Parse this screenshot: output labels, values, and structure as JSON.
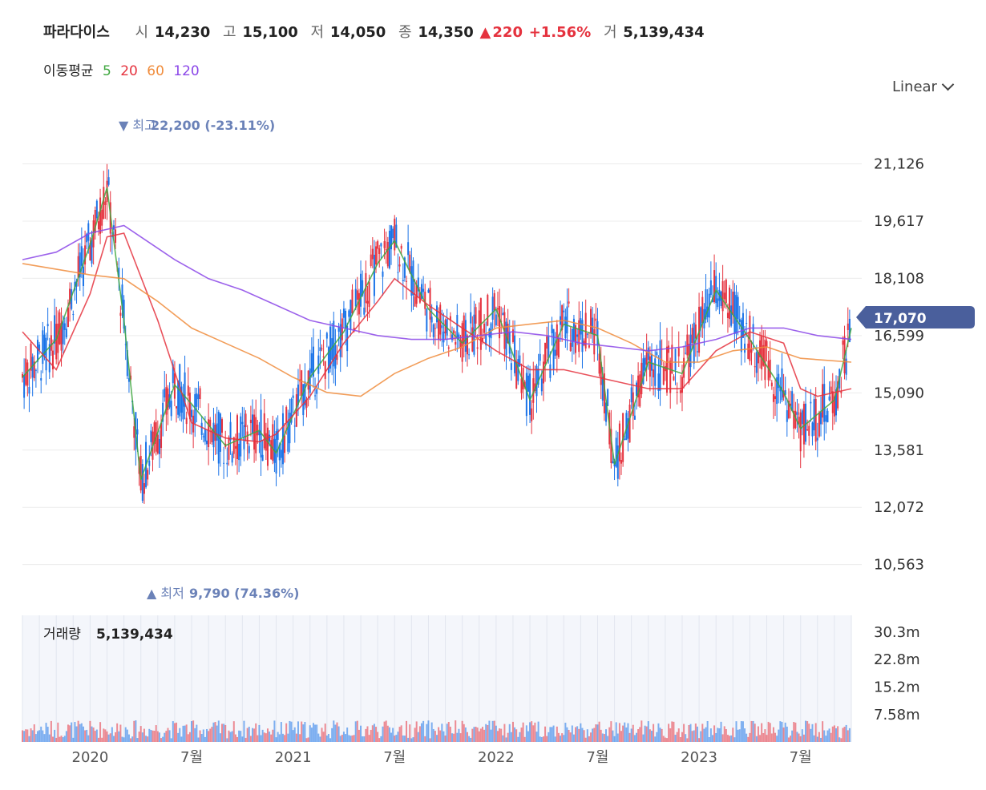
{
  "header": {
    "stock_name": "파라다이스",
    "open_label": "시",
    "open_value": "14,230",
    "high_label": "고",
    "high_value": "15,100",
    "low_label": "저",
    "low_value": "14,050",
    "close_label": "종",
    "close_value": "14,350",
    "change_icon": "triangle-up-icon",
    "change_value": "220",
    "change_pct": "+1.56%",
    "volume_label": "거",
    "volume_value": "5,139,434"
  },
  "moving_average": {
    "label": "이동평균",
    "periods": [
      "5",
      "20",
      "60",
      "120"
    ],
    "colors": [
      "#3fa73f",
      "#e5323e",
      "#f08c3c",
      "#8b47e8"
    ]
  },
  "scale_selector": {
    "label": "Linear",
    "icon": "chevron-down-icon"
  },
  "annotations": {
    "high_text": "▼ 최고",
    "high_value": "22,200 (-23.11%)",
    "low_text": "▲ 최저",
    "low_value": "9,790 (74.36%)",
    "current_price": "17,070"
  },
  "volume_panel": {
    "label": "거래량",
    "value": "5,139,434"
  },
  "colors": {
    "up": "#e5323e",
    "down": "#1a73e8",
    "accent": "#6b82b8",
    "current_tag": "#4a5f9c"
  },
  "chart_data": {
    "type": "candlestick",
    "price_axis": {
      "ticks": [
        "21,126",
        "19,617",
        "18,108",
        "16,599",
        "15,090",
        "13,581",
        "12,072",
        "10,563"
      ],
      "tick_values": [
        21126,
        19617,
        18108,
        16599,
        15090,
        13581,
        12072,
        10563
      ],
      "range": [
        9500,
        22700
      ]
    },
    "volume_axis": {
      "ticks": [
        "30.3m",
        "22.8m",
        "15.2m",
        "7.58m"
      ],
      "tick_values": [
        30.3,
        22.8,
        15.2,
        7.58
      ],
      "range": [
        0,
        35
      ]
    },
    "time_axis": {
      "labels": [
        "2020",
        "7월",
        "2021",
        "7월",
        "2022",
        "7월",
        "2023",
        "7월"
      ],
      "label_dates": [
        "2020-01",
        "2020-07",
        "2021-01",
        "2021-07",
        "2022-01",
        "2022-07",
        "2023-01",
        "2023-07"
      ],
      "range": [
        "2019-09",
        "2023-10"
      ]
    },
    "ma_lines": [
      {
        "name": "5",
        "color": "#3fa73f",
        "x": [
          "2019-09",
          "2019-11",
          "2020-01",
          "2020-02",
          "2020-03",
          "2020-04",
          "2020-06",
          "2020-07",
          "2020-09",
          "2020-11",
          "2020-12",
          "2021-02",
          "2021-04",
          "2021-06",
          "2021-07",
          "2021-09",
          "2021-11",
          "2022-01",
          "2022-03",
          "2022-05",
          "2022-07",
          "2022-08",
          "2022-10",
          "2022-12",
          "2023-02",
          "2023-04",
          "2023-06",
          "2023-07",
          "2023-09",
          "2023-10"
        ],
        "y": [
          15500,
          16500,
          19000,
          20500,
          17000,
          12800,
          15300,
          14800,
          13700,
          14100,
          13500,
          15500,
          16700,
          18500,
          19100,
          17300,
          16400,
          17300,
          14900,
          16900,
          16600,
          13200,
          15900,
          15600,
          17800,
          16500,
          15100,
          14150,
          14900,
          16800
        ]
      },
      {
        "name": "20",
        "color": "#e5323e",
        "x": [
          "2019-09",
          "2019-11",
          "2020-01",
          "2020-02",
          "2020-03",
          "2020-05",
          "2020-07",
          "2020-09",
          "2020-11",
          "2020-12",
          "2021-02",
          "2021-04",
          "2021-06",
          "2021-07",
          "2021-09",
          "2021-11",
          "2022-01",
          "2022-03",
          "2022-05",
          "2022-07",
          "2022-08",
          "2022-10",
          "2022-12",
          "2023-02",
          "2023-04",
          "2023-06",
          "2023-07",
          "2023-08",
          "2023-10"
        ],
        "y": [
          16700,
          15700,
          17700,
          19200,
          19300,
          17000,
          14300,
          13900,
          13800,
          14000,
          15000,
          16400,
          17500,
          18100,
          17400,
          16800,
          16200,
          15700,
          15700,
          15500,
          15400,
          15200,
          15200,
          16200,
          16700,
          16400,
          15200,
          15000,
          15200
        ]
      },
      {
        "name": "60",
        "color": "#f08c3c",
        "x": [
          "2019-09",
          "2020-01",
          "2020-03",
          "2020-05",
          "2020-07",
          "2020-09",
          "2020-11",
          "2021-01",
          "2021-03",
          "2021-05",
          "2021-07",
          "2021-09",
          "2021-11",
          "2022-01",
          "2022-03",
          "2022-05",
          "2022-07",
          "2022-09",
          "2022-11",
          "2023-01",
          "2023-03",
          "2023-05",
          "2023-07",
          "2023-10"
        ],
        "y": [
          18500,
          18200,
          18100,
          17500,
          16800,
          16400,
          16000,
          15500,
          15100,
          15000,
          15600,
          16000,
          16300,
          16800,
          16900,
          17000,
          16800,
          16400,
          15900,
          15900,
          16200,
          16300,
          16000,
          15900
        ]
      },
      {
        "name": "120",
        "color": "#8b47e8",
        "x": [
          "2019-09",
          "2019-11",
          "2020-01",
          "2020-03",
          "2020-04",
          "2020-06",
          "2020-08",
          "2020-10",
          "2020-12",
          "2021-02",
          "2021-04",
          "2021-06",
          "2021-08",
          "2021-10",
          "2021-12",
          "2022-02",
          "2022-04",
          "2022-06",
          "2022-08",
          "2022-10",
          "2022-12",
          "2023-02",
          "2023-04",
          "2023-06",
          "2023-08",
          "2023-10"
        ],
        "y": [
          18600,
          18800,
          19300,
          19500,
          19200,
          18600,
          18100,
          17800,
          17400,
          17000,
          16800,
          16600,
          16500,
          16500,
          16600,
          16700,
          16600,
          16400,
          16300,
          16200,
          16300,
          16500,
          16800,
          16800,
          16600,
          16500
        ]
      }
    ]
  }
}
